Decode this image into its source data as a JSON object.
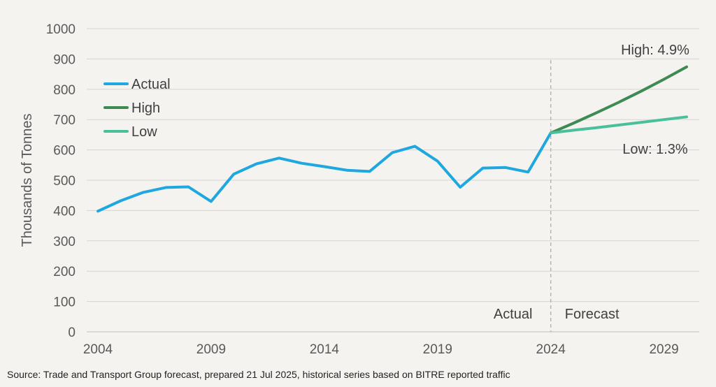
{
  "chart_data": {
    "type": "line",
    "ylabel": "Thousands of Tonnes",
    "ylim": [
      0,
      1000
    ],
    "yticks": [
      "0",
      "100",
      "200",
      "300",
      "400",
      "500",
      "600",
      "700",
      "800",
      "900",
      "1000"
    ],
    "xlim": [
      2004,
      2030
    ],
    "xticks": [
      "2004",
      "2009",
      "2014",
      "2019",
      "2024",
      "2029"
    ],
    "grid": true,
    "legend_position": "top-left",
    "series": [
      {
        "name": "Actual",
        "color": "#1fa7e0",
        "x": [
          2004,
          2005,
          2006,
          2007,
          2008,
          2009,
          2010,
          2011,
          2012,
          2013,
          2014,
          2015,
          2016,
          2017,
          2018,
          2019,
          2020,
          2021,
          2022,
          2023,
          2024
        ],
        "values": [
          398,
          432,
          460,
          476,
          478,
          430,
          520,
          554,
          573,
          556,
          545,
          533,
          529,
          591,
          612,
          563,
          477,
          540,
          542,
          527,
          656
        ]
      },
      {
        "name": "High",
        "color": "#3d8a52",
        "x": [
          2024,
          2025,
          2026,
          2027,
          2028,
          2029,
          2030
        ],
        "values": [
          656,
          688,
          722,
          757,
          794,
          833,
          874
        ]
      },
      {
        "name": "Low",
        "color": "#49c09a",
        "x": [
          2024,
          2025,
          2026,
          2027,
          2028,
          2029,
          2030
        ],
        "values": [
          656,
          665,
          673,
          682,
          691,
          700,
          709
        ]
      }
    ],
    "divider": {
      "x": 2024,
      "left_label": "Actual",
      "right_label": "Forecast"
    },
    "annotations": {
      "high": "High: 4.9%",
      "low": "Low: 1.3%"
    }
  },
  "source": "Source: Trade and Transport Group forecast, prepared 21 Jul 2025, historical series based on BITRE reported traffic"
}
